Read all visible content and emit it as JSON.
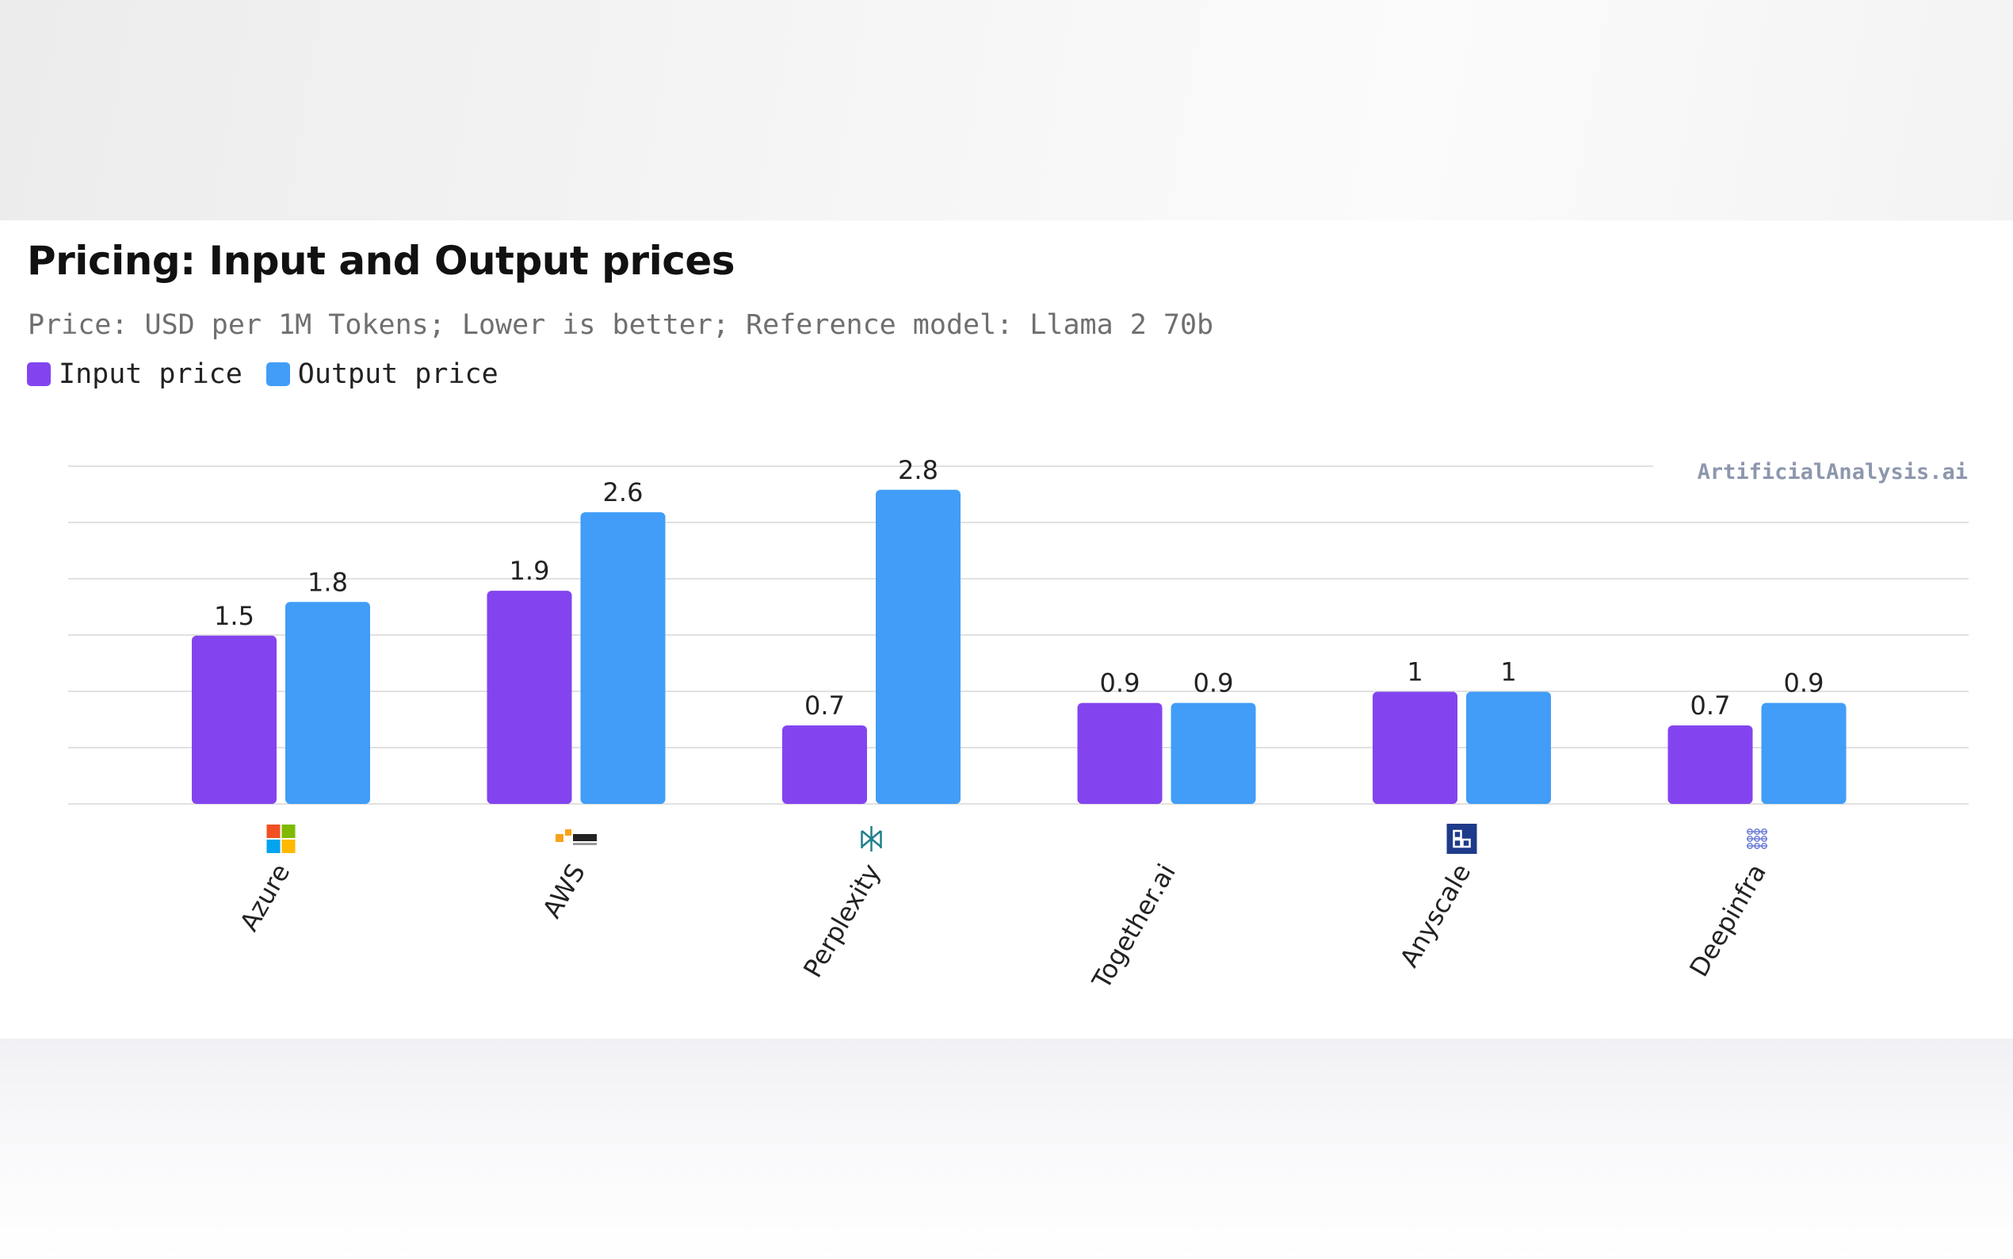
{
  "header": {
    "title": "Pricing: Input and Output prices",
    "subtitle": "Price: USD per 1M Tokens; Lower is better; Reference model: Llama 2 70b",
    "watermark": "ArtificialAnalysis.ai"
  },
  "colors": {
    "input": "#8344f0",
    "output": "#419df7",
    "grid": "#e1e1e1"
  },
  "chart_data": {
    "type": "bar",
    "categories": [
      "Azure",
      "AWS",
      "Perplexity",
      "Together.ai",
      "Anyscale",
      "Deepinfra"
    ],
    "category_icons": [
      "microsoft-logo-icon",
      "amazon-aws-logo-icon",
      "perplexity-logo-icon",
      "",
      "anyscale-logo-icon",
      "deepinfra-logo-icon"
    ],
    "series": [
      {
        "name": "Input price",
        "color": "#8344f0",
        "values": [
          1.5,
          1.9,
          0.7,
          0.9,
          1,
          0.7
        ]
      },
      {
        "name": "Output price",
        "color": "#419df7",
        "values": [
          1.8,
          2.6,
          2.8,
          0.9,
          1,
          0.9
        ]
      }
    ],
    "value_labels": {
      "Input price": [
        "1.5",
        "1.9",
        "0.7",
        "0.9",
        "1",
        "0.7"
      ],
      "Output price": [
        "1.8",
        "2.6",
        "2.8",
        "0.9",
        "1",
        "0.9"
      ]
    },
    "ylim": [
      0,
      3
    ],
    "grid": true,
    "legend": "top-left",
    "xlabel": "",
    "ylabel": ""
  }
}
